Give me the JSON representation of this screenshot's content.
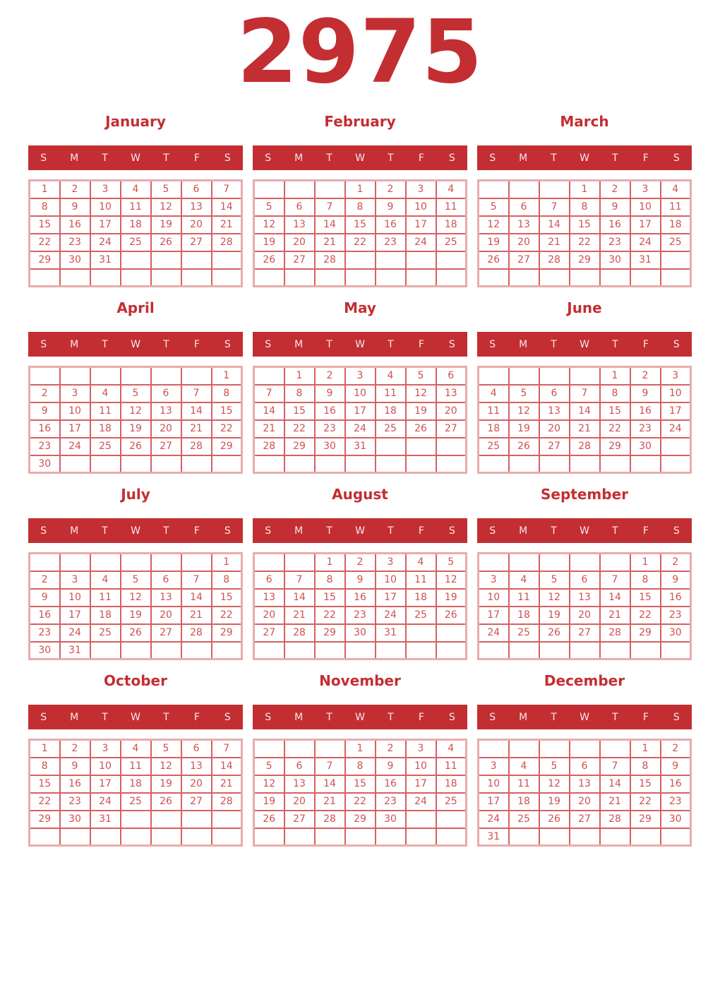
{
  "year": "2975",
  "weekdays": [
    "S",
    "M",
    "T",
    "W",
    "T",
    "F",
    "S"
  ],
  "colors": {
    "primary": "#c32e32",
    "day_number": "#cf5052",
    "grid_inner": "#d66062",
    "grid_outer": "#eaabac",
    "weekday_text": "#f6e8e8",
    "page_bg": "#ffffff"
  },
  "months": [
    {
      "name": "January",
      "weeks": [
        [
          "1",
          "2",
          "3",
          "4",
          "5",
          "6",
          "7"
        ],
        [
          "8",
          "9",
          "10",
          "11",
          "12",
          "13",
          "14"
        ],
        [
          "15",
          "16",
          "17",
          "18",
          "19",
          "20",
          "21"
        ],
        [
          "22",
          "23",
          "24",
          "25",
          "26",
          "27",
          "28"
        ],
        [
          "29",
          "30",
          "31",
          "",
          "",
          "",
          ""
        ],
        [
          "",
          "",
          "",
          "",
          "",
          "",
          ""
        ]
      ]
    },
    {
      "name": "February",
      "weeks": [
        [
          "",
          "",
          "",
          "1",
          "2",
          "3",
          "4"
        ],
        [
          "5",
          "6",
          "7",
          "8",
          "9",
          "10",
          "11"
        ],
        [
          "12",
          "13",
          "14",
          "15",
          "16",
          "17",
          "18"
        ],
        [
          "19",
          "20",
          "21",
          "22",
          "23",
          "24",
          "25"
        ],
        [
          "26",
          "27",
          "28",
          "",
          "",
          "",
          ""
        ],
        [
          "",
          "",
          "",
          "",
          "",
          "",
          ""
        ]
      ]
    },
    {
      "name": "March",
      "weeks": [
        [
          "",
          "",
          "",
          "1",
          "2",
          "3",
          "4"
        ],
        [
          "5",
          "6",
          "7",
          "8",
          "9",
          "10",
          "11"
        ],
        [
          "12",
          "13",
          "14",
          "15",
          "16",
          "17",
          "18"
        ],
        [
          "19",
          "20",
          "21",
          "22",
          "23",
          "24",
          "25"
        ],
        [
          "26",
          "27",
          "28",
          "29",
          "30",
          "31",
          ""
        ],
        [
          "",
          "",
          "",
          "",
          "",
          "",
          ""
        ]
      ]
    },
    {
      "name": "April",
      "weeks": [
        [
          "",
          "",
          "",
          "",
          "",
          "",
          "1"
        ],
        [
          "2",
          "3",
          "4",
          "5",
          "6",
          "7",
          "8"
        ],
        [
          "9",
          "10",
          "11",
          "12",
          "13",
          "14",
          "15"
        ],
        [
          "16",
          "17",
          "18",
          "19",
          "20",
          "21",
          "22"
        ],
        [
          "23",
          "24",
          "25",
          "26",
          "27",
          "28",
          "29"
        ],
        [
          "30",
          "",
          "",
          "",
          "",
          "",
          ""
        ]
      ]
    },
    {
      "name": "May",
      "weeks": [
        [
          "",
          "1",
          "2",
          "3",
          "4",
          "5",
          "6"
        ],
        [
          "7",
          "8",
          "9",
          "10",
          "11",
          "12",
          "13"
        ],
        [
          "14",
          "15",
          "16",
          "17",
          "18",
          "19",
          "20"
        ],
        [
          "21",
          "22",
          "23",
          "24",
          "25",
          "26",
          "27"
        ],
        [
          "28",
          "29",
          "30",
          "31",
          "",
          "",
          ""
        ],
        [
          "",
          "",
          "",
          "",
          "",
          "",
          ""
        ]
      ]
    },
    {
      "name": "June",
      "weeks": [
        [
          "",
          "",
          "",
          "",
          "1",
          "2",
          "3"
        ],
        [
          "4",
          "5",
          "6",
          "7",
          "8",
          "9",
          "10"
        ],
        [
          "11",
          "12",
          "13",
          "14",
          "15",
          "16",
          "17"
        ],
        [
          "18",
          "19",
          "20",
          "21",
          "22",
          "23",
          "24"
        ],
        [
          "25",
          "26",
          "27",
          "28",
          "29",
          "30",
          ""
        ],
        [
          "",
          "",
          "",
          "",
          "",
          "",
          ""
        ]
      ]
    },
    {
      "name": "July",
      "weeks": [
        [
          "",
          "",
          "",
          "",
          "",
          "",
          "1"
        ],
        [
          "2",
          "3",
          "4",
          "5",
          "6",
          "7",
          "8"
        ],
        [
          "9",
          "10",
          "11",
          "12",
          "13",
          "14",
          "15"
        ],
        [
          "16",
          "17",
          "18",
          "19",
          "20",
          "21",
          "22"
        ],
        [
          "23",
          "24",
          "25",
          "26",
          "27",
          "28",
          "29"
        ],
        [
          "30",
          "31",
          "",
          "",
          "",
          "",
          ""
        ]
      ]
    },
    {
      "name": "August",
      "weeks": [
        [
          "",
          "",
          "1",
          "2",
          "3",
          "4",
          "5"
        ],
        [
          "6",
          "7",
          "8",
          "9",
          "10",
          "11",
          "12"
        ],
        [
          "13",
          "14",
          "15",
          "16",
          "17",
          "18",
          "19"
        ],
        [
          "20",
          "21",
          "22",
          "23",
          "24",
          "25",
          "26"
        ],
        [
          "27",
          "28",
          "29",
          "30",
          "31",
          "",
          ""
        ],
        [
          "",
          "",
          "",
          "",
          "",
          "",
          ""
        ]
      ]
    },
    {
      "name": "September",
      "weeks": [
        [
          "",
          "",
          "",
          "",
          "",
          "1",
          "2"
        ],
        [
          "3",
          "4",
          "5",
          "6",
          "7",
          "8",
          "9"
        ],
        [
          "10",
          "11",
          "12",
          "13",
          "14",
          "15",
          "16"
        ],
        [
          "17",
          "18",
          "19",
          "20",
          "21",
          "22",
          "23"
        ],
        [
          "24",
          "25",
          "26",
          "27",
          "28",
          "29",
          "30"
        ],
        [
          "",
          "",
          "",
          "",
          "",
          "",
          ""
        ]
      ]
    },
    {
      "name": "October",
      "weeks": [
        [
          "1",
          "2",
          "3",
          "4",
          "5",
          "6",
          "7"
        ],
        [
          "8",
          "9",
          "10",
          "11",
          "12",
          "13",
          "14"
        ],
        [
          "15",
          "16",
          "17",
          "18",
          "19",
          "20",
          "21"
        ],
        [
          "22",
          "23",
          "24",
          "25",
          "26",
          "27",
          "28"
        ],
        [
          "29",
          "30",
          "31",
          "",
          "",
          "",
          ""
        ],
        [
          "",
          "",
          "",
          "",
          "",
          "",
          ""
        ]
      ]
    },
    {
      "name": "November",
      "weeks": [
        [
          "",
          "",
          "",
          "1",
          "2",
          "3",
          "4"
        ],
        [
          "5",
          "6",
          "7",
          "8",
          "9",
          "10",
          "11"
        ],
        [
          "12",
          "13",
          "14",
          "15",
          "16",
          "17",
          "18"
        ],
        [
          "19",
          "20",
          "21",
          "22",
          "23",
          "24",
          "25"
        ],
        [
          "26",
          "27",
          "28",
          "29",
          "30",
          "",
          ""
        ],
        [
          "",
          "",
          "",
          "",
          "",
          "",
          ""
        ]
      ]
    },
    {
      "name": "December",
      "weeks": [
        [
          "",
          "",
          "",
          "",
          "",
          "1",
          "2"
        ],
        [
          "3",
          "4",
          "5",
          "6",
          "7",
          "8",
          "9"
        ],
        [
          "10",
          "11",
          "12",
          "13",
          "14",
          "15",
          "16"
        ],
        [
          "17",
          "18",
          "19",
          "20",
          "21",
          "22",
          "23"
        ],
        [
          "24",
          "25",
          "26",
          "27",
          "28",
          "29",
          "30"
        ],
        [
          "31",
          "",
          "",
          "",
          "",
          "",
          ""
        ]
      ]
    }
  ]
}
